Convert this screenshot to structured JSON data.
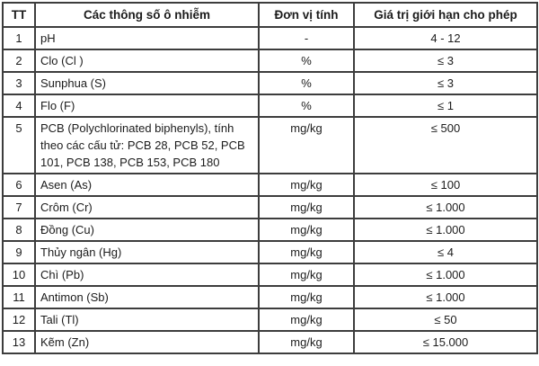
{
  "table": {
    "headers": [
      "TT",
      "Các thông số ô nhiễm",
      "Đơn vị tính",
      "Giá trị giới hạn cho phép"
    ],
    "rows": [
      {
        "tt": "1",
        "param": "pH",
        "unit": "-",
        "limit": "4 - 12"
      },
      {
        "tt": "2",
        "param": "Clo (Cl )",
        "unit": "%",
        "limit": "≤ 3"
      },
      {
        "tt": "3",
        "param": "Sunphua (S)",
        "unit": "%",
        "limit": "≤ 3"
      },
      {
        "tt": "4",
        "param": "Flo (F)",
        "unit": "%",
        "limit": "≤ 1"
      },
      {
        "tt": "5",
        "param": "PCB (Polychlorinated biphenyls), tính theo các cấu tử: PCB 28, PCB 52, PCB 101, PCB 138, PCB 153, PCB 180",
        "unit": "mg/kg",
        "limit": "≤ 500"
      },
      {
        "tt": "6",
        "param": "Asen (As)",
        "unit": "mg/kg",
        "limit": "≤ 100"
      },
      {
        "tt": "7",
        "param": "Crôm (Cr)",
        "unit": "mg/kg",
        "limit": "≤ 1.000"
      },
      {
        "tt": "8",
        "param": "Đồng (Cu)",
        "unit": "mg/kg",
        "limit": "≤ 1.000"
      },
      {
        "tt": "9",
        "param": "Thủy ngân (Hg)",
        "unit": "mg/kg",
        "limit": "≤ 4"
      },
      {
        "tt": "10",
        "param": "Chì (Pb)",
        "unit": "mg/kg",
        "limit": "≤ 1.000"
      },
      {
        "tt": "11",
        "param": "Antimon (Sb)",
        "unit": "mg/kg",
        "limit": "≤ 1.000"
      },
      {
        "tt": "12",
        "param": "Tali (Tl)",
        "unit": "mg/kg",
        "limit": "≤ 50"
      },
      {
        "tt": "13",
        "param": "Kẽm (Zn)",
        "unit": "mg/kg",
        "limit": "≤ 15.000"
      }
    ]
  },
  "colors": {
    "border": "#3d3d3d",
    "text": "#1c1c1c",
    "background": "#ffffff"
  }
}
